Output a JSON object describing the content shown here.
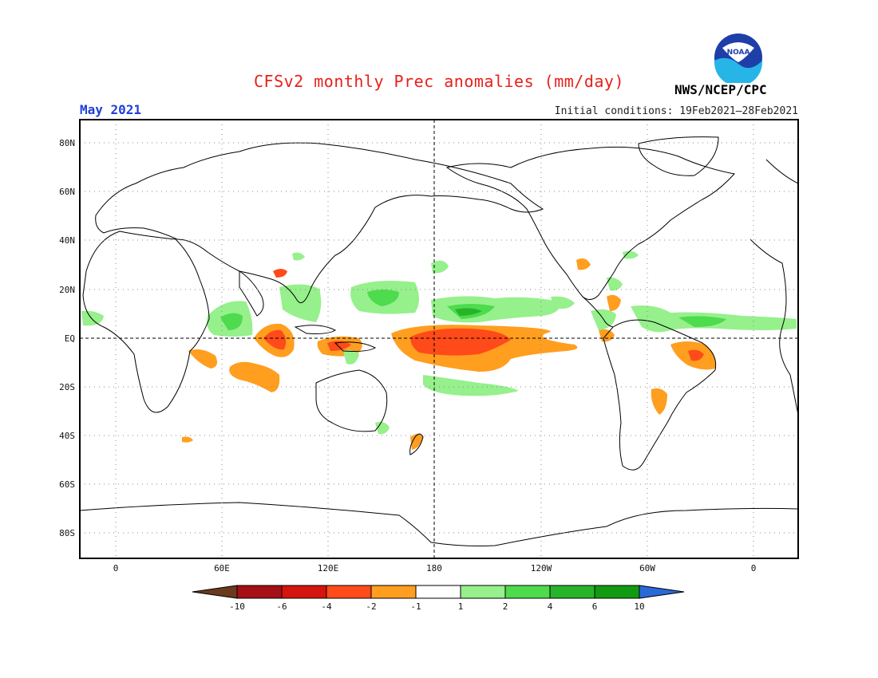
{
  "header": {
    "title": "CFSv2 monthly Prec anomalies (mm/day)",
    "valid_month": "May 2021",
    "initial_conditions": "Initial conditions: 19Feb2021–28Feb2021",
    "agency": "NWS/NCEP/CPC",
    "logo_text": "NOAA"
  },
  "map": {
    "projection": "cylindrical equidistant",
    "lon_range": [
      "20W",
      "20E (wrapped)"
    ],
    "lat_range": [
      -90,
      90
    ],
    "lat_labels": [
      "80N",
      "60N",
      "40N",
      "20N",
      "EQ",
      "20S",
      "40S",
      "60S",
      "80S"
    ],
    "lon_labels": [
      "0",
      "60E",
      "120E",
      "180",
      "120W",
      "60W",
      "0"
    ],
    "grid": "dotted",
    "reference_lines": [
      "EQ dashed",
      "180 dashed"
    ]
  },
  "colorbar": {
    "labels": [
      "-10",
      "-6",
      "-4",
      "-2",
      "-1",
      "1",
      "2",
      "4",
      "6",
      "10"
    ],
    "colors": [
      "#6b3a1e",
      "#a50f15",
      "#d4140f",
      "#ff4a1a",
      "#ff9e1f",
      "#ffffff",
      "#96f08c",
      "#4edb4e",
      "#28b428",
      "#129a12",
      "#2a6ad6"
    ],
    "units": "mm/day"
  }
}
